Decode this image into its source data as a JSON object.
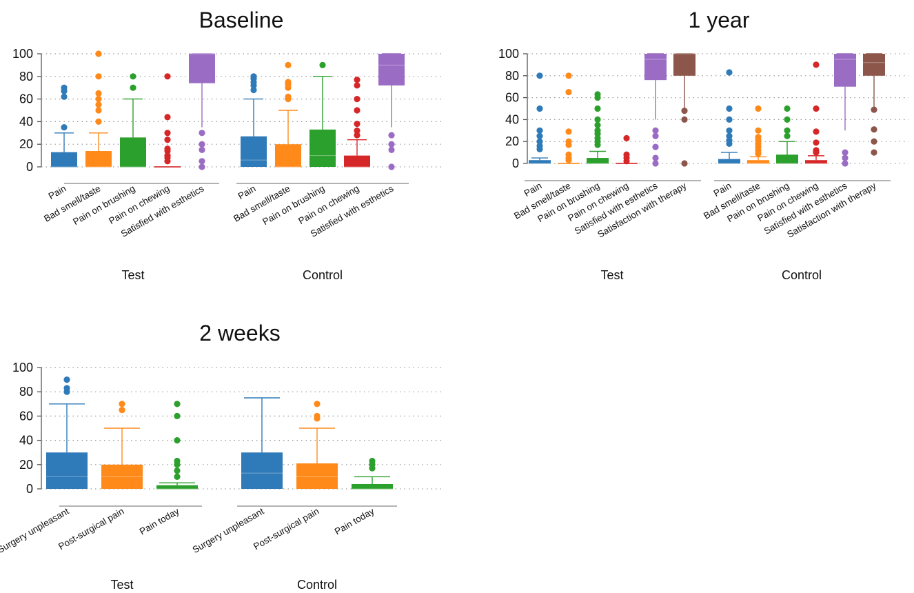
{
  "colors": {
    "blue": "#2f7ab8",
    "orange": "#ff8a1a",
    "green": "#2ca02c",
    "red": "#d62728",
    "purple": "#9b6cc4",
    "brown": "#8c564b"
  },
  "chart_data": [
    {
      "type": "box",
      "title": "Baseline",
      "ylim": [
        0,
        100
      ],
      "yticks": [
        0,
        20,
        40,
        60,
        80,
        100
      ],
      "grid": true,
      "groups": [
        {
          "name": "Test",
          "boxes": [
            {
              "label": "Pain",
              "color": "blue",
              "q1": 0,
              "median": 0,
              "q3": 13,
              "whisker_low": 0,
              "whisker_high": 30,
              "outliers": [
                35,
                62,
                67,
                70
              ]
            },
            {
              "label": "Bad smell/taste",
              "color": "orange",
              "q1": 0,
              "median": 0,
              "q3": 14,
              "whisker_low": 0,
              "whisker_high": 30,
              "outliers": [
                40,
                50,
                55,
                60,
                65,
                80,
                100
              ]
            },
            {
              "label": "Pain on brushing",
              "color": "green",
              "q1": 0,
              "median": 0,
              "q3": 26,
              "whisker_low": 0,
              "whisker_high": 60,
              "outliers": [
                70,
                80
              ]
            },
            {
              "label": "Pain on chewing",
              "color": "red",
              "q1": 0,
              "median": 0,
              "q3": 0,
              "whisker_low": 0,
              "whisker_high": 0,
              "outliers": [
                5,
                8,
                10,
                14,
                16,
                24,
                30,
                44,
                80
              ]
            },
            {
              "label": "Satisfied with esthetics",
              "color": "purple",
              "q1": 74,
              "median": 100,
              "q3": 100,
              "whisker_low": 35,
              "whisker_high": 100,
              "outliers": [
                0,
                5,
                15,
                20,
                30
              ]
            }
          ]
        },
        {
          "name": "Control",
          "boxes": [
            {
              "label": "Pain",
              "color": "blue",
              "q1": 0,
              "median": 6,
              "q3": 27,
              "whisker_low": 0,
              "whisker_high": 60,
              "outliers": [
                68,
                72,
                75,
                78,
                80
              ]
            },
            {
              "label": "Bad smell/taste",
              "color": "orange",
              "q1": 0,
              "median": 0,
              "q3": 20,
              "whisker_low": 0,
              "whisker_high": 50,
              "outliers": [
                60,
                62,
                70,
                73,
                75,
                90
              ]
            },
            {
              "label": "Pain on brushing",
              "color": "green",
              "q1": 0,
              "median": 10,
              "q3": 33,
              "whisker_low": 0,
              "whisker_high": 80,
              "outliers": [
                90
              ]
            },
            {
              "label": "Pain on chewing",
              "color": "red",
              "q1": 0,
              "median": 0,
              "q3": 10,
              "whisker_low": 0,
              "whisker_high": 24,
              "outliers": [
                28,
                32,
                38,
                50,
                60,
                72,
                77
              ]
            },
            {
              "label": "Satisfied with esthetics",
              "color": "purple",
              "q1": 72,
              "median": 90,
              "q3": 100,
              "whisker_low": 35,
              "whisker_high": 100,
              "outliers": [
                0,
                15,
                20,
                28
              ]
            }
          ]
        }
      ]
    },
    {
      "type": "box",
      "title": "1 year",
      "ylim": [
        0,
        100
      ],
      "yticks": [
        0,
        20,
        40,
        60,
        80,
        100
      ],
      "grid": true,
      "groups": [
        {
          "name": "Test",
          "boxes": [
            {
              "label": "Pain",
              "color": "blue",
              "q1": 0,
              "median": 0,
              "q3": 3,
              "whisker_low": 0,
              "whisker_high": 5,
              "outliers": [
                13,
                16,
                20,
                25,
                30,
                50,
                80
              ]
            },
            {
              "label": "Bad smell/taste",
              "color": "orange",
              "q1": 0,
              "median": 0,
              "q3": 0,
              "whisker_low": 0,
              "whisker_high": 0,
              "outliers": [
                3,
                5,
                8,
                17,
                20,
                29,
                65,
                80
              ]
            },
            {
              "label": "Pain on brushing",
              "color": "green",
              "q1": 0,
              "median": 0,
              "q3": 5,
              "whisker_low": 0,
              "whisker_high": 11,
              "outliers": [
                17,
                20,
                23,
                27,
                30,
                35,
                40,
                50,
                60,
                63
              ]
            },
            {
              "label": "Pain on chewing",
              "color": "red",
              "q1": 0,
              "median": 0,
              "q3": 0,
              "whisker_low": 0,
              "whisker_high": 0,
              "outliers": [
                2,
                5,
                8,
                23
              ]
            },
            {
              "label": "Satisfied with esthetics",
              "color": "purple",
              "q1": 76,
              "median": 95,
              "q3": 100,
              "whisker_low": 40,
              "whisker_high": 100,
              "outliers": [
                0,
                5,
                15,
                25,
                30
              ]
            },
            {
              "label": "Satisfaction with therapy",
              "color": "brown",
              "q1": 80,
              "median": 100,
              "q3": 100,
              "whisker_low": 50,
              "whisker_high": 100,
              "outliers": [
                0,
                40,
                48
              ]
            }
          ]
        },
        {
          "name": "Control",
          "boxes": [
            {
              "label": "Pain",
              "color": "blue",
              "q1": 0,
              "median": 0,
              "q3": 4,
              "whisker_low": 0,
              "whisker_high": 10,
              "outliers": [
                18,
                21,
                25,
                30,
                40,
                50,
                83
              ]
            },
            {
              "label": "Bad smell/taste",
              "color": "orange",
              "q1": 0,
              "median": 0,
              "q3": 3,
              "whisker_low": 0,
              "whisker_high": 6,
              "outliers": [
                9,
                12,
                15,
                18,
                21,
                24,
                30,
                50
              ]
            },
            {
              "label": "Pain on brushing",
              "color": "green",
              "q1": 0,
              "median": 0,
              "q3": 8,
              "whisker_low": 0,
              "whisker_high": 20,
              "outliers": [
                25,
                30,
                40,
                50
              ]
            },
            {
              "label": "Pain on chewing",
              "color": "red",
              "q1": 0,
              "median": 0,
              "q3": 3,
              "whisker_low": 0,
              "whisker_high": 7,
              "outliers": [
                10,
                12,
                19,
                29,
                50,
                90
              ]
            },
            {
              "label": "Satisfied with esthetics",
              "color": "purple",
              "q1": 70,
              "median": 95,
              "q3": 100,
              "whisker_low": 30,
              "whisker_high": 100,
              "outliers": [
                0,
                5,
                10
              ]
            },
            {
              "label": "Satisfaction with therapy",
              "color": "brown",
              "q1": 80,
              "median": 92,
              "q3": 100,
              "whisker_low": 50,
              "whisker_high": 100,
              "outliers": [
                10,
                20,
                31,
                49
              ]
            }
          ]
        }
      ]
    },
    {
      "type": "box",
      "title": "2 weeks",
      "ylim": [
        0,
        100
      ],
      "yticks": [
        0,
        20,
        40,
        60,
        80,
        100
      ],
      "grid": true,
      "groups": [
        {
          "name": "Test",
          "boxes": [
            {
              "label": "Surgery unpleasant",
              "color": "blue",
              "q1": 0,
              "median": 10,
              "q3": 30,
              "whisker_low": 0,
              "whisker_high": 70,
              "outliers": [
                80,
                83,
                90
              ]
            },
            {
              "label": "Post-surgical pain",
              "color": "orange",
              "q1": 0,
              "median": 10,
              "q3": 20,
              "whisker_low": 0,
              "whisker_high": 50,
              "outliers": [
                65,
                70
              ]
            },
            {
              "label": "Pain today",
              "color": "green",
              "q1": 0,
              "median": 0,
              "q3": 3,
              "whisker_low": 0,
              "whisker_high": 5,
              "outliers": [
                10,
                15,
                20,
                23,
                40,
                60,
                70
              ]
            }
          ]
        },
        {
          "name": "Control",
          "boxes": [
            {
              "label": "Surgery unpleasant",
              "color": "blue",
              "q1": 0,
              "median": 13,
              "q3": 30,
              "whisker_low": 0,
              "whisker_high": 75,
              "outliers": []
            },
            {
              "label": "Post-surgical pain",
              "color": "orange",
              "q1": 0,
              "median": 10,
              "q3": 21,
              "whisker_low": 0,
              "whisker_high": 50,
              "outliers": [
                58,
                60,
                70
              ]
            },
            {
              "label": "Pain today",
              "color": "green",
              "q1": 0,
              "median": 0,
              "q3": 4,
              "whisker_low": 0,
              "whisker_high": 10,
              "outliers": [
                17,
                20,
                23
              ]
            }
          ]
        }
      ]
    }
  ]
}
